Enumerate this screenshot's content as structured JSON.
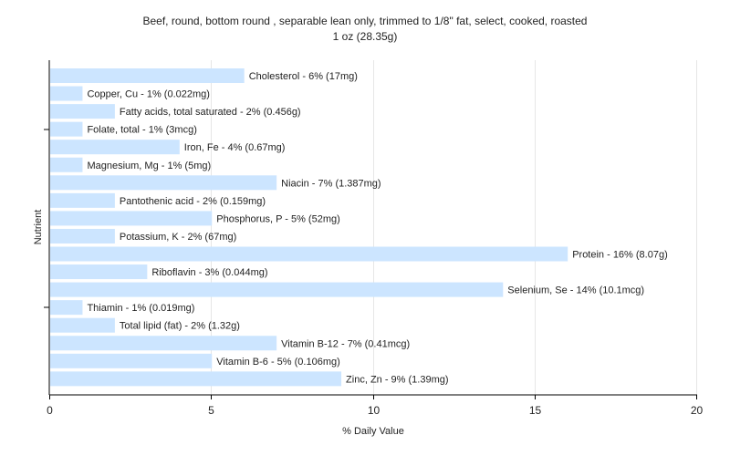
{
  "chart_data": {
    "type": "bar",
    "orientation": "horizontal",
    "title": "Beef, round, bottom round , separable lean only, trimmed to 1/8\" fat, select, cooked, roasted",
    "subtitle": "1 oz (28.35g)",
    "xlabel": "% Daily Value",
    "ylabel": "Nutrient",
    "xlim": [
      0,
      20
    ],
    "xticks": [
      0,
      5,
      10,
      15,
      20
    ],
    "grid": true,
    "bar_color": "#cce5ff",
    "grid_color": "#e6e6e6",
    "categories": [
      "Cholesterol",
      "Copper, Cu",
      "Fatty acids, total saturated",
      "Folate, total",
      "Iron, Fe",
      "Magnesium, Mg",
      "Niacin",
      "Pantothenic acid",
      "Phosphorus, P",
      "Potassium, K",
      "Protein",
      "Riboflavin",
      "Selenium, Se",
      "Thiamin",
      "Total lipid (fat)",
      "Vitamin B-12",
      "Vitamin B-6",
      "Zinc, Zn"
    ],
    "values": [
      6,
      1,
      2,
      1,
      4,
      1,
      7,
      2,
      5,
      2,
      16,
      3,
      14,
      1,
      2,
      7,
      5,
      9
    ],
    "labels": [
      "Cholesterol - 6% (17mg)",
      "Copper, Cu - 1% (0.022mg)",
      "Fatty acids, total saturated - 2% (0.456g)",
      "Folate, total - 1% (3mcg)",
      "Iron, Fe - 4% (0.67mg)",
      "Magnesium, Mg - 1% (5mg)",
      "Niacin - 7% (1.387mg)",
      "Pantothenic acid - 2% (0.159mg)",
      "Phosphorus, P - 5% (52mg)",
      "Potassium, K - 2% (67mg)",
      "Protein - 16% (8.07g)",
      "Riboflavin - 3% (0.044mg)",
      "Selenium, Se - 14% (10.1mcg)",
      "Thiamin - 1% (0.019mg)",
      "Total lipid (fat) - 2% (1.32g)",
      "Vitamin B-12 - 7% (0.41mcg)",
      "Vitamin B-6 - 5% (0.106mg)",
      "Zinc, Zn - 9% (1.39mg)"
    ]
  }
}
